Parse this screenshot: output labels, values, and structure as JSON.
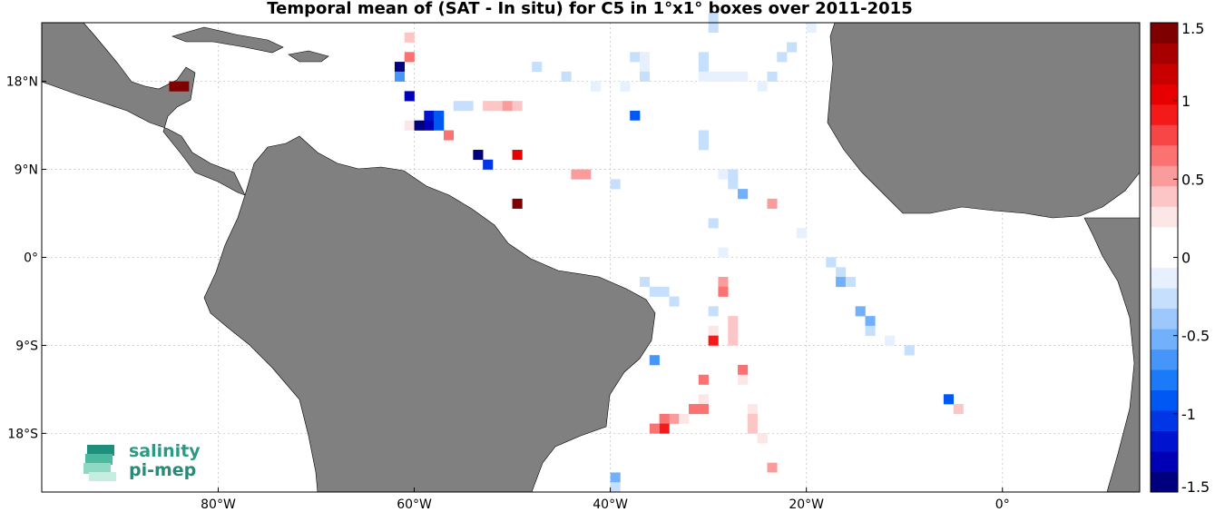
{
  "title": "Temporal mean of (SAT - In situ) for C5 in 1°x1° boxes over 2011-2015",
  "logo": {
    "line1": "salinity",
    "line2": "pi-mep"
  },
  "chart_data": {
    "type": "heatmap",
    "title": "Temporal mean of (SAT - In situ) for C5 in 1°x1° boxes over 2011-2015",
    "xlim": [
      -98,
      14
    ],
    "ylim": [
      -24,
      24
    ],
    "grid": true,
    "x_ticks": [
      {
        "value": -80,
        "label": "80°W"
      },
      {
        "value": -60,
        "label": "60°W"
      },
      {
        "value": -40,
        "label": "40°W"
      },
      {
        "value": -20,
        "label": "20°W"
      },
      {
        "value": 0,
        "label": "0°"
      }
    ],
    "y_ticks": [
      {
        "value": 18,
        "label": "18°N"
      },
      {
        "value": 9,
        "label": "9°N"
      },
      {
        "value": 0,
        "label": "0°"
      },
      {
        "value": -9,
        "label": "9°S"
      },
      {
        "value": -18,
        "label": "18°S"
      }
    ],
    "colorbar": {
      "range": [
        -1.5,
        1.5
      ],
      "ticks": [
        {
          "value": 1.5,
          "label": "1.5"
        },
        {
          "value": 1,
          "label": "1"
        },
        {
          "value": 0.5,
          "label": "0.5"
        },
        {
          "value": 0,
          "label": "0"
        },
        {
          "value": -0.5,
          "label": "-0.5"
        },
        {
          "value": -1,
          "label": "-1"
        },
        {
          "value": -1.5,
          "label": "-1.5"
        }
      ],
      "colors": [
        "#00007f",
        "#0000b4",
        "#0014d0",
        "#0036e6",
        "#0058f4",
        "#1a7af8",
        "#4696fa",
        "#72b0fb",
        "#9cc8fc",
        "#c6dffd",
        "#e6f0fe",
        "#ffffff",
        "#ffffff",
        "#fde6e6",
        "#fcc6c6",
        "#fb9c9c",
        "#fa7272",
        "#f84646",
        "#f41a1a",
        "#e60000",
        "#c80000",
        "#a60000",
        "#7f0000"
      ]
    },
    "cells": [
      {
        "lon": -65,
        "lat": 23,
        "value": 0.15
      },
      {
        "lon": -61,
        "lat": 22,
        "value": 0.35
      },
      {
        "lon": -63,
        "lat": 20,
        "value": 0.15
      },
      {
        "lon": -61,
        "lat": 20,
        "value": 0.6
      },
      {
        "lon": -62,
        "lat": 19,
        "value": -1.5
      },
      {
        "lon": -62,
        "lat": 18,
        "value": -0.7
      },
      {
        "lon": -85,
        "lat": 17,
        "value": 1.4
      },
      {
        "lon": -84,
        "lat": 17,
        "value": 1.4
      },
      {
        "lon": -81,
        "lat": 16,
        "value": 0.15
      },
      {
        "lon": -61,
        "lat": 16,
        "value": -1.3
      },
      {
        "lon": -56,
        "lat": 15,
        "value": -0.3
      },
      {
        "lon": -55,
        "lat": 15,
        "value": -0.25
      },
      {
        "lon": -53,
        "lat": 15,
        "value": 0.35
      },
      {
        "lon": -52,
        "lat": 15,
        "value": 0.35
      },
      {
        "lon": -51,
        "lat": 15,
        "value": 0.55
      },
      {
        "lon": -50,
        "lat": 15,
        "value": 0.35
      },
      {
        "lon": -59,
        "lat": 14,
        "value": -1.2
      },
      {
        "lon": -58,
        "lat": 14,
        "value": -0.9
      },
      {
        "lon": -61,
        "lat": 13,
        "value": 0.25
      },
      {
        "lon": -60,
        "lat": 13,
        "value": -1.5
      },
      {
        "lon": -59,
        "lat": 13,
        "value": -1.3
      },
      {
        "lon": -58,
        "lat": 13,
        "value": -0.9
      },
      {
        "lon": -57,
        "lat": 12,
        "value": 0.7
      },
      {
        "lon": -54,
        "lat": 10,
        "value": -1.5
      },
      {
        "lon": -53,
        "lat": 9,
        "value": -1.0
      },
      {
        "lon": -50,
        "lat": 10,
        "value": 1.0
      },
      {
        "lon": -44,
        "lat": 8,
        "value": 0.5
      },
      {
        "lon": -43,
        "lat": 8,
        "value": 0.5
      },
      {
        "lon": -40,
        "lat": 7,
        "value": -0.3
      },
      {
        "lon": -50,
        "lat": 5,
        "value": 1.4
      },
      {
        "lon": -38,
        "lat": 20,
        "value": -0.25
      },
      {
        "lon": -37,
        "lat": 20,
        "value": -0.1
      },
      {
        "lon": -37,
        "lat": 19,
        "value": -0.1
      },
      {
        "lon": -37,
        "lat": 18,
        "value": -0.2
      },
      {
        "lon": -39,
        "lat": 17,
        "value": -0.1
      },
      {
        "lon": -42,
        "lat": 17,
        "value": -0.1
      },
      {
        "lon": -45,
        "lat": 18,
        "value": -0.2
      },
      {
        "lon": -48,
        "lat": 19,
        "value": -0.3
      },
      {
        "lon": -38,
        "lat": 14,
        "value": -0.9
      },
      {
        "lon": -38,
        "lat": 13,
        "value": 0.15
      },
      {
        "lon": -38,
        "lat": 10,
        "value": 0.15
      },
      {
        "lon": -32,
        "lat": 15,
        "value": 0.15
      },
      {
        "lon": -31,
        "lat": 20,
        "value": -0.2
      },
      {
        "lon": -31,
        "lat": 19,
        "value": -0.3
      },
      {
        "lon": -31,
        "lat": 18,
        "value": -0.1
      },
      {
        "lon": -30,
        "lat": 18,
        "value": -0.1
      },
      {
        "lon": -29,
        "lat": 18,
        "value": -0.15
      },
      {
        "lon": -28,
        "lat": 18,
        "value": -0.15
      },
      {
        "lon": -27,
        "lat": 18,
        "value": -0.1
      },
      {
        "lon": -24,
        "lat": 18,
        "value": -0.2
      },
      {
        "lon": -25,
        "lat": 17,
        "value": -0.1
      },
      {
        "lon": -31,
        "lat": 12,
        "value": -0.3
      },
      {
        "lon": -31,
        "lat": 11,
        "value": -0.3
      },
      {
        "lon": -30,
        "lat": 24,
        "value": -0.3
      },
      {
        "lon": -30,
        "lat": 23,
        "value": -0.3
      },
      {
        "lon": -22,
        "lat": 21,
        "value": -0.2
      },
      {
        "lon": -23,
        "lat": 20,
        "value": -0.2
      },
      {
        "lon": -20,
        "lat": 23,
        "value": -0.1
      },
      {
        "lon": -29,
        "lat": 8,
        "value": -0.15
      },
      {
        "lon": -28,
        "lat": 8,
        "value": -0.2
      },
      {
        "lon": -28,
        "lat": 7,
        "value": -0.3
      },
      {
        "lon": -27,
        "lat": 6,
        "value": -0.5
      },
      {
        "lon": -24,
        "lat": 5,
        "value": 0.5
      },
      {
        "lon": -30,
        "lat": 3,
        "value": -0.3
      },
      {
        "lon": -21,
        "lat": 2,
        "value": -0.15
      },
      {
        "lon": -29,
        "lat": 0,
        "value": -0.15
      },
      {
        "lon": -29,
        "lat": -3,
        "value": 0.5
      },
      {
        "lon": -29,
        "lat": -4,
        "value": 0.6
      },
      {
        "lon": -37,
        "lat": -3,
        "value": -0.25
      },
      {
        "lon": -36,
        "lat": -4,
        "value": -0.3
      },
      {
        "lon": -35,
        "lat": -4,
        "value": -0.25
      },
      {
        "lon": -34,
        "lat": -5,
        "value": -0.2
      },
      {
        "lon": -30,
        "lat": -6,
        "value": -0.2
      },
      {
        "lon": -28,
        "lat": -7,
        "value": 0.35
      },
      {
        "lon": -30,
        "lat": -8,
        "value": 0.25
      },
      {
        "lon": -30,
        "lat": -9,
        "value": 0.9
      },
      {
        "lon": -28,
        "lat": -8,
        "value": 0.35
      },
      {
        "lon": -28,
        "lat": -9,
        "value": 0.35
      },
      {
        "lon": -36,
        "lat": -11,
        "value": -0.6
      },
      {
        "lon": -27,
        "lat": -12,
        "value": 0.6
      },
      {
        "lon": -27,
        "lat": -13,
        "value": 0.25
      },
      {
        "lon": -31,
        "lat": -13,
        "value": 0.6
      },
      {
        "lon": -31,
        "lat": -15,
        "value": 0.25
      },
      {
        "lon": -31,
        "lat": -16,
        "value": 0.7
      },
      {
        "lon": -32,
        "lat": -16,
        "value": 0.7
      },
      {
        "lon": -34,
        "lat": -17,
        "value": 0.5
      },
      {
        "lon": -33,
        "lat": -17,
        "value": 0.25
      },
      {
        "lon": -35,
        "lat": -17,
        "value": 0.7
      },
      {
        "lon": -35,
        "lat": -18,
        "value": 0.9
      },
      {
        "lon": -36,
        "lat": -18,
        "value": 0.7
      },
      {
        "lon": -26,
        "lat": -16,
        "value": 0.25
      },
      {
        "lon": -26,
        "lat": -17,
        "value": 0.35
      },
      {
        "lon": -26,
        "lat": -18,
        "value": 0.35
      },
      {
        "lon": -25,
        "lat": -19,
        "value": 0.25
      },
      {
        "lon": -24,
        "lat": -22,
        "value": 0.55
      },
      {
        "lon": -24,
        "lat": -23,
        "value": 0.15
      },
      {
        "lon": -40,
        "lat": -23,
        "value": -0.5
      },
      {
        "lon": -40,
        "lat": -24,
        "value": -0.3
      },
      {
        "lon": -18,
        "lat": -1,
        "value": -0.2
      },
      {
        "lon": -17,
        "lat": -2,
        "value": -0.3
      },
      {
        "lon": -17,
        "lat": -3,
        "value": -0.5
      },
      {
        "lon": -16,
        "lat": -3,
        "value": -0.3
      },
      {
        "lon": -15,
        "lat": -6,
        "value": -0.5
      },
      {
        "lon": -14,
        "lat": -7,
        "value": -0.5
      },
      {
        "lon": -14,
        "lat": -8,
        "value": -0.25
      },
      {
        "lon": -12,
        "lat": -9,
        "value": -0.15
      },
      {
        "lon": -10,
        "lat": -10,
        "value": -0.2
      },
      {
        "lon": -8,
        "lat": -13,
        "value": 0.15
      },
      {
        "lon": -6,
        "lat": -15,
        "value": -0.9
      },
      {
        "lon": -5,
        "lat": -16,
        "value": 0.35
      },
      {
        "lon": -5,
        "lat": -20,
        "value": 0.15
      },
      {
        "lon": -5,
        "lat": -21,
        "value": 0.15
      },
      {
        "lon": -4,
        "lat": -22,
        "value": 0.15
      },
      {
        "lon": -4,
        "lat": -23,
        "value": 0.15
      }
    ]
  }
}
